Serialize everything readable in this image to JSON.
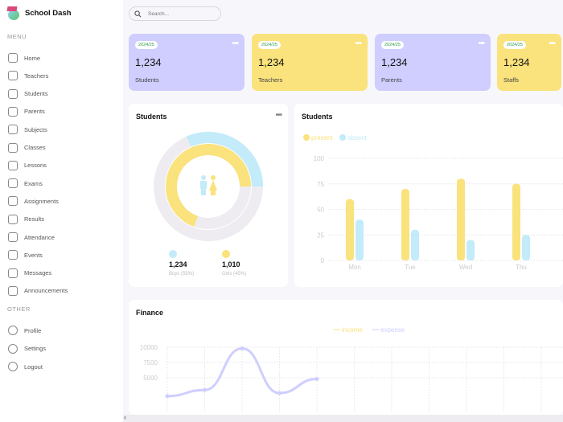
{
  "app": {
    "title": "School Dash"
  },
  "sidebar": {
    "menu_label": "MENU",
    "items": [
      {
        "label": "Home",
        "icon": "home-icon"
      },
      {
        "label": "Teachers",
        "icon": "teacher-icon"
      },
      {
        "label": "Students",
        "icon": "student-icon"
      },
      {
        "label": "Parents",
        "icon": "parent-icon"
      },
      {
        "label": "Subjects",
        "icon": "subject-icon"
      },
      {
        "label": "Classes",
        "icon": "class-icon"
      },
      {
        "label": "Lessons",
        "icon": "lesson-icon"
      },
      {
        "label": "Exams",
        "icon": "exam-icon"
      },
      {
        "label": "Assignments",
        "icon": "assignment-icon"
      },
      {
        "label": "Results",
        "icon": "result-icon"
      },
      {
        "label": "Attendance",
        "icon": "attendance-icon"
      },
      {
        "label": "Events",
        "icon": "calendar-icon"
      },
      {
        "label": "Messages",
        "icon": "message-icon"
      },
      {
        "label": "Announcements",
        "icon": "announcement-icon"
      }
    ],
    "other_label": "OTHER",
    "other_items": [
      {
        "label": "Profile",
        "icon": "profile-icon"
      },
      {
        "label": "Settings",
        "icon": "settings-icon"
      },
      {
        "label": "Logout",
        "icon": "logout-icon"
      }
    ]
  },
  "search": {
    "placeholder": "Search..."
  },
  "cards": [
    {
      "badge": "2024/25",
      "value": "1,234",
      "label": "Students",
      "color": "#cfceff"
    },
    {
      "badge": "2024/25",
      "value": "1,234",
      "label": "Teachers",
      "color": "#fae27c"
    },
    {
      "badge": "2024/25",
      "value": "1,234",
      "label": "Parents",
      "color": "#cfceff"
    },
    {
      "badge": "2024/25",
      "value": "1,234",
      "label": "Staffs",
      "color": "#fae27c"
    }
  ],
  "count_chart": {
    "title": "Students",
    "boys": {
      "value": "1,234",
      "label": "Boys (55%)",
      "color": "#c3ebfa"
    },
    "girls": {
      "value": "1,010",
      "label": "Girls (45%)",
      "color": "#fae27c"
    }
  },
  "chart_data": [
    {
      "type": "bar",
      "title": "Students",
      "categories": [
        "Mon",
        "Tue",
        "Wed",
        "Thu"
      ],
      "series": [
        {
          "name": "present",
          "values": [
            60,
            70,
            80,
            75
          ],
          "color": "#fae27c"
        },
        {
          "name": "absent",
          "values": [
            40,
            30,
            20,
            25
          ],
          "color": "#c3ebfa"
        }
      ],
      "ylim": [
        0,
        100
      ],
      "yticks": [
        0,
        25,
        50,
        75,
        100
      ],
      "grid": true,
      "legend": "top-left"
    },
    {
      "type": "line",
      "title": "Finance",
      "series": [
        {
          "name": "income",
          "color": "#fae27c",
          "values": []
        },
        {
          "name": "expense",
          "color": "#cfceff",
          "values": [
            2000,
            3000,
            9800,
            2500,
            4800
          ]
        }
      ],
      "yticks": [
        5000,
        7500,
        10000
      ],
      "grid": true,
      "legend": "top-center"
    }
  ]
}
